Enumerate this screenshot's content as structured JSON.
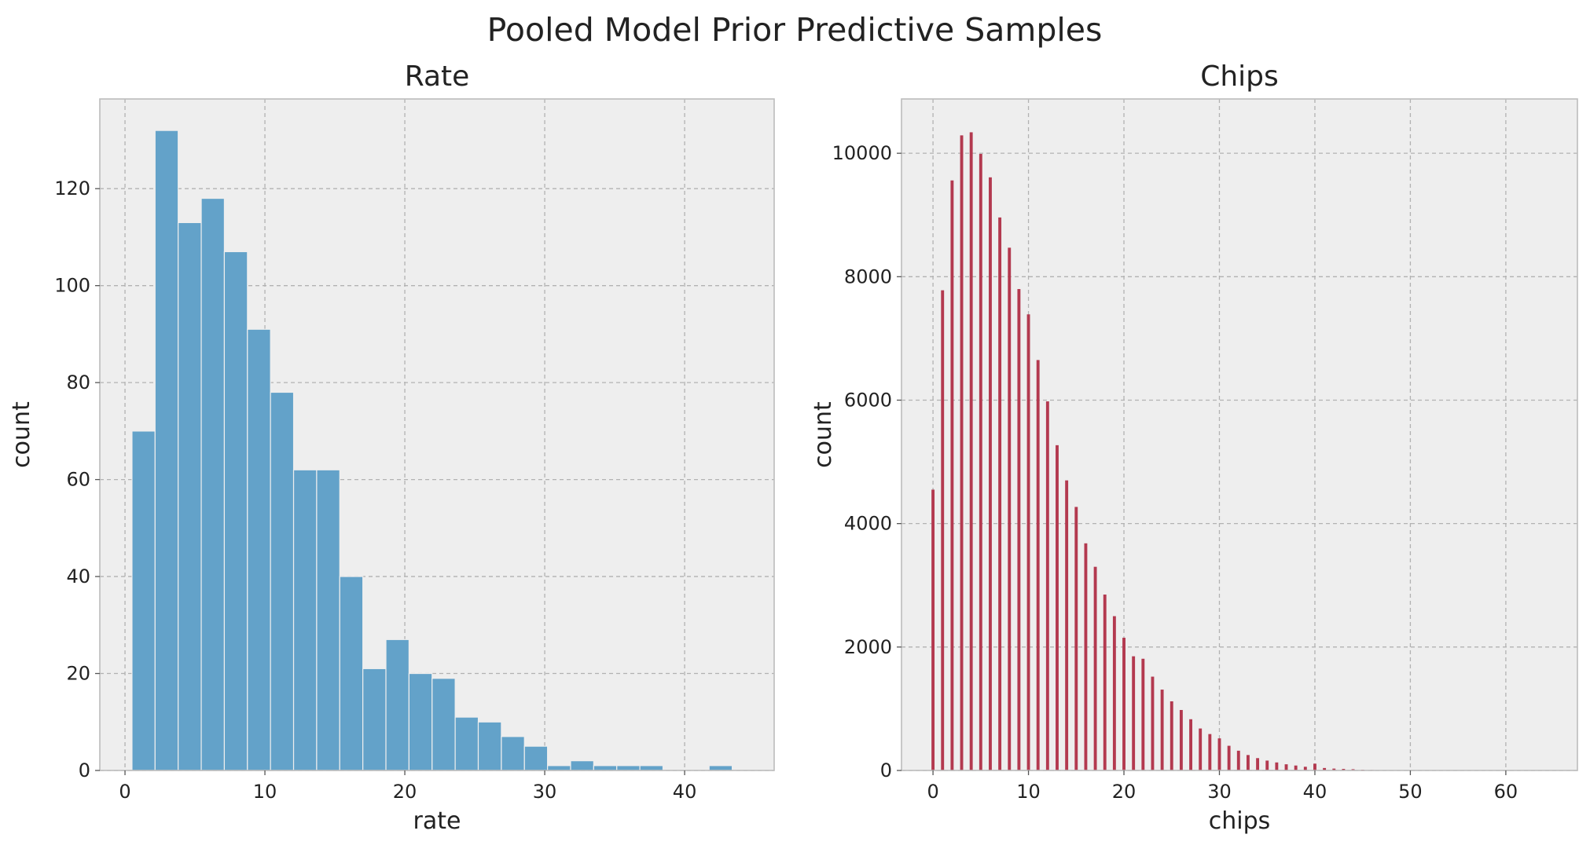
{
  "figure": {
    "title": "Pooled Model Prior Predictive Samples"
  },
  "colors": {
    "plot_background": "#eeeeee",
    "grid": "#b2b2b2",
    "spine": "#bcbcbc",
    "rate_bar": "#63a2c9",
    "chips_bar": "#b3394f"
  },
  "chart_data": [
    {
      "type": "bar",
      "subtype": "histogram",
      "title": "Rate",
      "xlabel": "rate",
      "ylabel": "count",
      "xlim": [
        -1.8,
        46.4
      ],
      "ylim": [
        0,
        138.5
      ],
      "xticks": [
        0,
        10,
        20,
        30,
        40
      ],
      "yticks": [
        0,
        20,
        40,
        60,
        80,
        100,
        120
      ],
      "grid": true,
      "bin_edges": [
        0.5,
        2.15,
        3.8,
        5.45,
        7.1,
        8.75,
        10.4,
        12.05,
        13.7,
        15.35,
        17.0,
        18.65,
        20.3,
        21.95,
        23.6,
        25.25,
        26.9,
        28.55,
        30.2,
        31.85,
        33.5,
        35.15,
        36.8,
        38.45,
        40.1,
        41.75,
        43.4,
        45.05
      ],
      "values": [
        70,
        132,
        113,
        118,
        107,
        91,
        78,
        62,
        62,
        40,
        21,
        27,
        20,
        19,
        11,
        10,
        7,
        5,
        1,
        2,
        1,
        1,
        1,
        0,
        0,
        1,
        0
      ]
    },
    {
      "type": "bar",
      "subtype": "histogram",
      "title": "Chips",
      "xlabel": "chips",
      "ylabel": "count",
      "xlim": [
        -3.3,
        67.5
      ],
      "ylim": [
        0,
        10880
      ],
      "xticks": [
        0,
        10,
        20,
        30,
        40,
        50,
        60
      ],
      "yticks": [
        0,
        2000,
        4000,
        6000,
        8000,
        10000
      ],
      "grid": true,
      "x": [
        0,
        1,
        2,
        3,
        4,
        5,
        6,
        7,
        8,
        9,
        10,
        11,
        12,
        13,
        14,
        15,
        16,
        17,
        18,
        19,
        20,
        21,
        22,
        23,
        24,
        25,
        26,
        27,
        28,
        29,
        30,
        31,
        32,
        33,
        34,
        35,
        36,
        37,
        38,
        39,
        40,
        41,
        42,
        43,
        44,
        45,
        46,
        47,
        48
      ],
      "values": [
        4550,
        7780,
        9560,
        10290,
        10340,
        9990,
        9610,
        8960,
        8470,
        7800,
        7390,
        6650,
        5980,
        5270,
        4700,
        4270,
        3680,
        3300,
        2850,
        2500,
        2150,
        1850,
        1810,
        1520,
        1310,
        1120,
        980,
        830,
        680,
        590,
        520,
        400,
        320,
        250,
        200,
        160,
        130,
        100,
        80,
        60,
        110,
        40,
        30,
        25,
        20,
        12,
        8,
        5,
        3
      ]
    }
  ]
}
